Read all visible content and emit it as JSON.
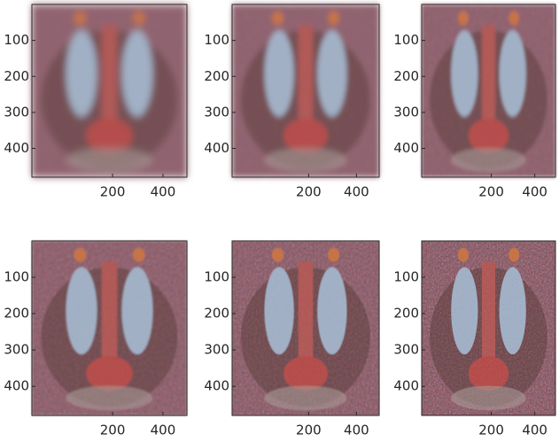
{
  "chart_data": [
    {
      "type": "image",
      "xlim": [
        -120,
        495
      ],
      "ylim": [
        0,
        480
      ],
      "xticks": [
        200,
        400
      ],
      "yticks": [
        100,
        200,
        300,
        400
      ]
    },
    {
      "type": "image",
      "xlim": [
        -120,
        495
      ],
      "ylim": [
        0,
        480
      ],
      "xticks": [
        200,
        400
      ],
      "yticks": [
        100,
        200,
        300,
        400
      ]
    },
    {
      "type": "image",
      "xlim": [
        -120,
        495
      ],
      "ylim": [
        0,
        480
      ],
      "xticks": [
        200,
        400
      ],
      "yticks": [
        100,
        200,
        300,
        400
      ]
    },
    {
      "type": "image",
      "xlim": [
        -120,
        495
      ],
      "ylim": [
        0,
        480
      ],
      "xticks": [
        200,
        400
      ],
      "yticks": [
        100,
        200,
        300,
        400
      ]
    },
    {
      "type": "image",
      "xlim": [
        -120,
        495
      ],
      "ylim": [
        0,
        480
      ],
      "xticks": [
        200,
        400
      ],
      "yticks": [
        100,
        200,
        300,
        400
      ]
    },
    {
      "type": "image",
      "xlim": [
        -120,
        495
      ],
      "ylim": [
        0,
        480
      ],
      "xticks": [
        200,
        400
      ],
      "yticks": [
        100,
        200,
        300,
        400
      ]
    }
  ]
}
